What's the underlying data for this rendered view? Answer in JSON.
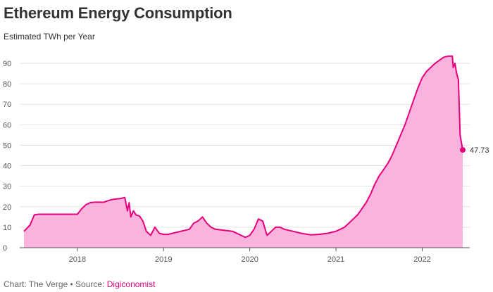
{
  "colors": {
    "line": "#e6007e",
    "area": "#f9b3dd",
    "grid": "#e2e2e2",
    "link": "#e6007e"
  },
  "footer": {
    "prefix": "Chart: The Verge • Source: ",
    "source_link": "Digiconomist"
  },
  "chart_data": {
    "type": "area",
    "title": "Ethereum Energy Consumption",
    "subtitle": "Estimated TWh per Year",
    "xlabel": "",
    "ylabel": "",
    "y_ticks": [
      0,
      10,
      20,
      30,
      40,
      50,
      60,
      70,
      80,
      90
    ],
    "ylim": [
      0,
      90
    ],
    "x_tick_labels": [
      "2018",
      "2019",
      "2020",
      "2021",
      "2022"
    ],
    "x_tick_values": [
      2018,
      2019,
      2020,
      2021,
      2022
    ],
    "xlim": [
      2017.38,
      2022.47
    ],
    "grid": true,
    "legend": "none",
    "end_label": "47.73",
    "series": [
      {
        "x": [
          2017.38,
          2017.45,
          2017.5,
          2017.55,
          2017.6,
          2017.7,
          2017.8,
          2017.9,
          2018.0,
          2018.05,
          2018.1,
          2018.15,
          2018.2,
          2018.3,
          2018.4,
          2018.45,
          2018.5,
          2018.55,
          2018.58,
          2018.6,
          2018.62,
          2018.65,
          2018.68,
          2018.72,
          2018.76,
          2018.8,
          2018.85,
          2018.9,
          2018.95,
          2019.0,
          2019.05,
          2019.1,
          2019.2,
          2019.3,
          2019.35,
          2019.4,
          2019.45,
          2019.5,
          2019.55,
          2019.6,
          2019.7,
          2019.8,
          2019.9,
          2019.95,
          2020.0,
          2020.05,
          2020.1,
          2020.15,
          2020.2,
          2020.25,
          2020.3,
          2020.35,
          2020.4,
          2020.5,
          2020.6,
          2020.7,
          2020.8,
          2020.9,
          2021.0,
          2021.05,
          2021.1,
          2021.15,
          2021.2,
          2021.25,
          2021.3,
          2021.35,
          2021.4,
          2021.45,
          2021.5,
          2021.55,
          2021.6,
          2021.65,
          2021.7,
          2021.75,
          2021.8,
          2021.85,
          2021.9,
          2021.95,
          2022.0,
          2022.05,
          2022.1,
          2022.15,
          2022.2,
          2022.25,
          2022.3,
          2022.35,
          2022.36,
          2022.38,
          2022.4,
          2022.42,
          2022.44,
          2022.46,
          2022.47
        ],
        "y": [
          8,
          11,
          16,
          16.3,
          16.3,
          16.3,
          16.3,
          16.3,
          16.3,
          19,
          21,
          22,
          22.2,
          22.2,
          23.5,
          23.8,
          24,
          24.5,
          18,
          22,
          15,
          18,
          16,
          15.5,
          13,
          8,
          6,
          10,
          7,
          6.5,
          6.5,
          7,
          8,
          9,
          12,
          13,
          15,
          12,
          10,
          9,
          8.5,
          8,
          6,
          5,
          6,
          9,
          14,
          13,
          6,
          8,
          10,
          10,
          9,
          8,
          7,
          6.3,
          6.5,
          7,
          8,
          9,
          10,
          12,
          14,
          16,
          19,
          22,
          26,
          31,
          35,
          38,
          41,
          45,
          50,
          55,
          60,
          66,
          72,
          78,
          83,
          86,
          88,
          90,
          91.5,
          93,
          93.5,
          93.5,
          88,
          90,
          85,
          82,
          55,
          50,
          47.73
        ]
      }
    ]
  }
}
